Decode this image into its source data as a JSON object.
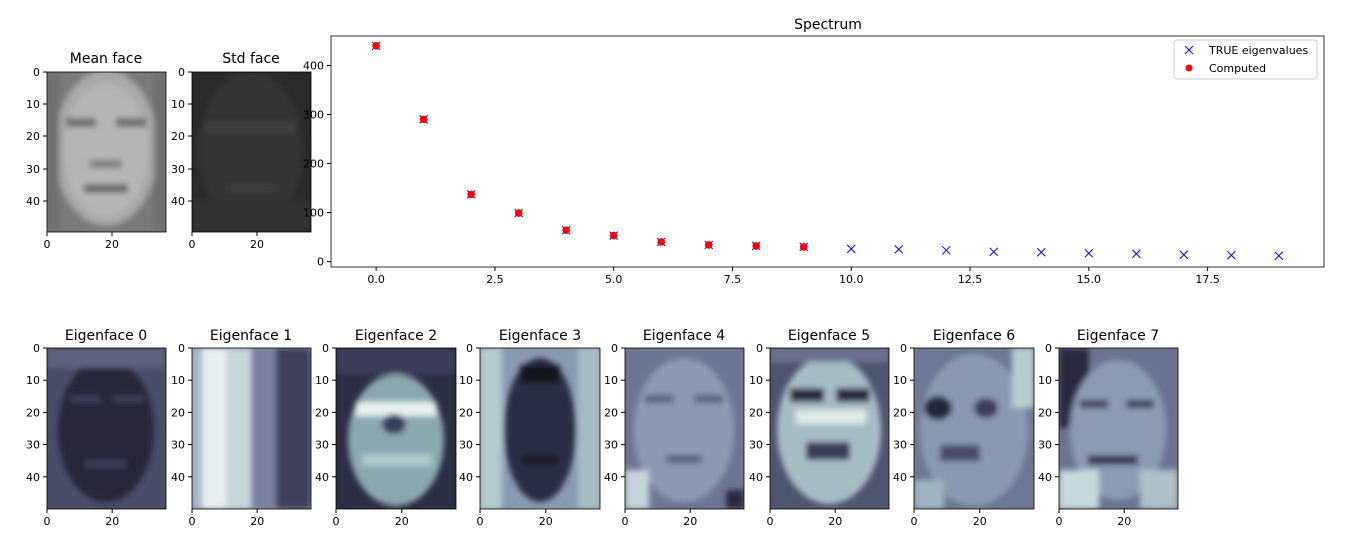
{
  "panels": {
    "mean_face": {
      "title": "Mean face",
      "yticks": [
        "0",
        "10",
        "20",
        "30",
        "40"
      ],
      "xticks": [
        "0",
        "20"
      ]
    },
    "std_face": {
      "title": "Std face",
      "yticks": [
        "0",
        "10",
        "20",
        "30",
        "40"
      ],
      "xticks": [
        "0",
        "20"
      ]
    },
    "eigenfaces": [
      {
        "title": "Eigenface 0"
      },
      {
        "title": "Eigenface 1"
      },
      {
        "title": "Eigenface 2"
      },
      {
        "title": "Eigenface 3"
      },
      {
        "title": "Eigenface 4"
      },
      {
        "title": "Eigenface 5"
      },
      {
        "title": "Eigenface 6"
      },
      {
        "title": "Eigenface 7"
      }
    ],
    "image_yticks": [
      "0",
      "10",
      "20",
      "30",
      "40"
    ],
    "image_xticks": [
      "0",
      "20"
    ]
  },
  "chart_data": {
    "type": "scatter",
    "title": "Spectrum",
    "xlabel": "",
    "ylabel": "",
    "xlim": [
      -0.95,
      19.95
    ],
    "ylim": [
      -11,
      460
    ],
    "xticks": [
      0.0,
      2.5,
      5.0,
      7.5,
      10.0,
      12.5,
      15.0,
      17.5
    ],
    "xtick_labels": [
      "0.0",
      "2.5",
      "5.0",
      "7.5",
      "10.0",
      "12.5",
      "15.0",
      "17.5"
    ],
    "yticks": [
      0,
      100,
      200,
      300,
      400
    ],
    "ytick_labels": [
      "0",
      "100",
      "200",
      "300",
      "400"
    ],
    "legend_position": "top-right",
    "grid": false,
    "series": [
      {
        "name": "TRUE eigenvalues",
        "marker": "x",
        "color": "#0000ff",
        "x": [
          0,
          1,
          2,
          3,
          4,
          5,
          6,
          7,
          8,
          9,
          10,
          11,
          12,
          13,
          14,
          15,
          16,
          17,
          18,
          19
        ],
        "values": [
          440,
          290,
          137,
          99,
          64,
          53,
          40,
          34,
          32,
          30,
          26,
          25,
          23,
          20,
          19,
          17,
          16,
          14,
          13,
          12
        ]
      },
      {
        "name": "Computed",
        "marker": "o",
        "color": "#ff0000",
        "x": [
          0,
          1,
          2,
          3,
          4,
          5,
          6,
          7,
          8,
          9
        ],
        "values": [
          440,
          290,
          137,
          99,
          64,
          53,
          40,
          34,
          32,
          30
        ]
      }
    ]
  }
}
